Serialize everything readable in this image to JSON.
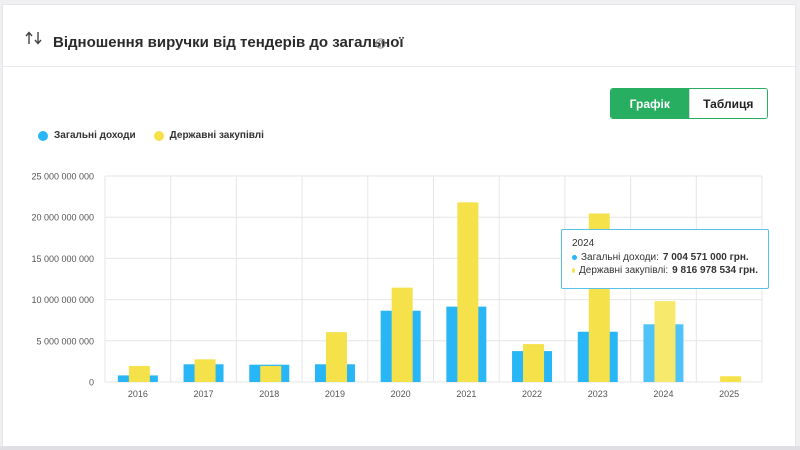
{
  "header": {
    "title": "Відношення виручки від тендерів до загальної",
    "sort_icon": "sort-arrows-icon",
    "help_icon": "help-circle-icon"
  },
  "toggle": {
    "graph_label": "Графік",
    "table_label": "Таблиця",
    "active": "graph"
  },
  "colors": {
    "general": "#29b6f6",
    "public": "#f5e14a",
    "accent": "#27ae60",
    "grid": "#e6e6e6"
  },
  "tooltip": {
    "year": "2024",
    "general_label": "Загальні доходи:",
    "general_value": "7 004 571 000 грн.",
    "public_label": "Державні закупівлі:",
    "public_value": "9 816 978 534 грн."
  },
  "chart_data": {
    "type": "bar",
    "categories": [
      "2016",
      "2017",
      "2018",
      "2019",
      "2020",
      "2021",
      "2022",
      "2023",
      "2024",
      "2025"
    ],
    "series": [
      {
        "name": "Загальні доходи",
        "values": [
          800000000,
          2150000000,
          2100000000,
          2150000000,
          8650000000,
          9150000000,
          3750000000,
          6100000000,
          7004571000,
          0
        ]
      },
      {
        "name": "Державні закупівлі",
        "values": [
          1950000000,
          2750000000,
          1950000000,
          6050000000,
          11450000000,
          21800000000,
          4600000000,
          20450000000,
          9816978534,
          700000000
        ]
      }
    ],
    "ylim": [
      0,
      25000000000
    ],
    "yticks": [
      0,
      5000000000,
      10000000000,
      15000000000,
      20000000000,
      25000000000
    ],
    "ytick_labels": [
      "0",
      "5 000 000 000",
      "10 000 000 000",
      "15 000 000 000",
      "20 000 000 000",
      "25 000 000 000"
    ],
    "grid": true,
    "legend_position": "top-left",
    "highlighted_category": "2024"
  }
}
